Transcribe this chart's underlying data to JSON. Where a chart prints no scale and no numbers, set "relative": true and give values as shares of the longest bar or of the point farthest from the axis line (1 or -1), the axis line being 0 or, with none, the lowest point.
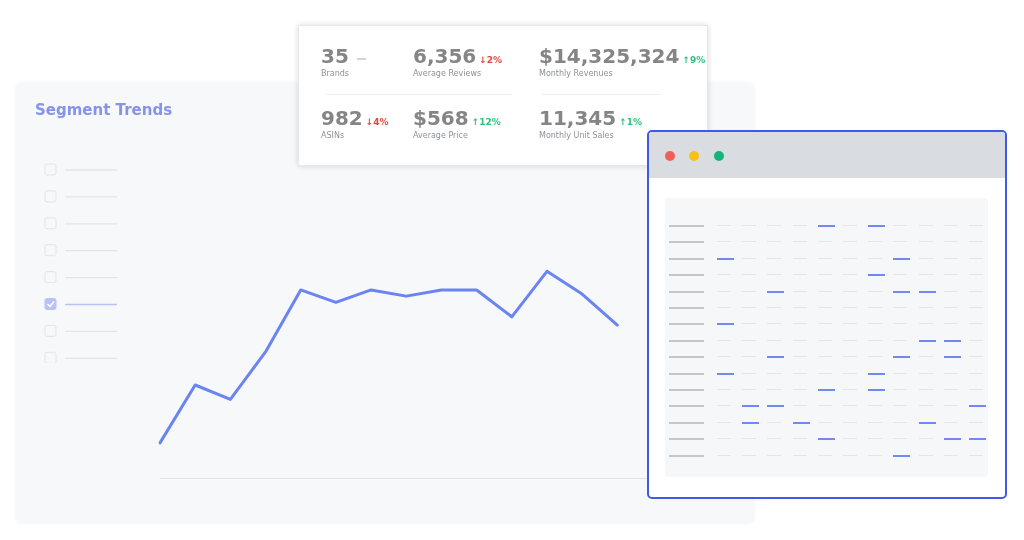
{
  "chart_data": [
    {
      "type": "line",
      "title": "Segment Trends",
      "relative": true,
      "legend": false,
      "marker": "none",
      "line_style": "solid",
      "categories": [
        null,
        null,
        null,
        null,
        null,
        null,
        null,
        null,
        null,
        null,
        null,
        null,
        null,
        null,
        null,
        null,
        null,
        null
      ],
      "series": [
        {
          "color": "#6a84f2",
          "values": [
            0.17,
            0.45,
            0.38,
            0.61,
            0.91,
            0.85,
            0.91,
            0.88,
            0.91,
            0.91,
            0.78,
            1,
            0.89,
            0.74,
            null,
            null,
            null,
            null
          ]
        }
      ]
    },
    {
      "type": "other",
      "annotations": [
        "35",
        "Brands",
        "6,356",
        "↓2%",
        "Average Reviews",
        "$14,325,324",
        "↑9%",
        "Monthly Revenues",
        "982",
        "↓4%",
        "ASINs",
        "$568",
        "↑12%",
        "Average Price",
        "11,345",
        "↑1%",
        "Monthly Unit Sales"
      ]
    }
  ]
}
